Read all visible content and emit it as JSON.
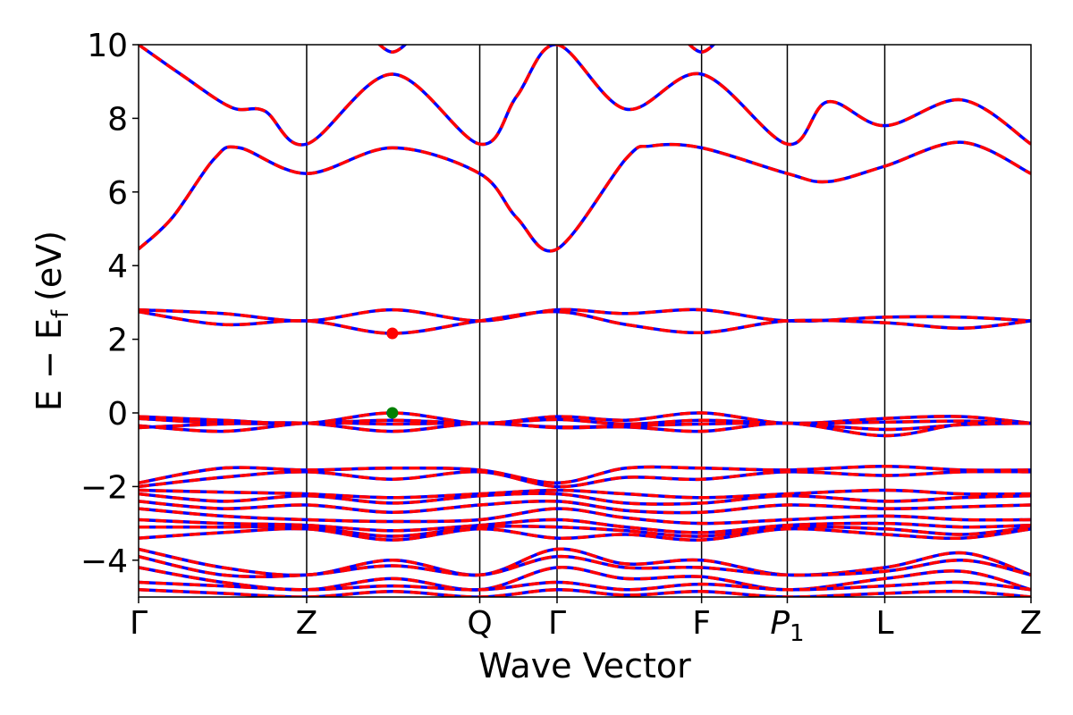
{
  "chart_data": {
    "type": "line",
    "title": "",
    "xlabel": "Wave Vector",
    "ylabel": "E − E",
    "ylabel_subscript": "f",
    "ylabel_unit": "(eV)",
    "ylim": [
      -5,
      10
    ],
    "yticks": [
      10,
      8,
      6,
      4,
      2,
      0,
      -2,
      -4
    ],
    "ytick_labels": [
      "10",
      "8",
      "6",
      "4",
      "2",
      "0",
      "−2",
      "−4"
    ],
    "kpoints": [
      {
        "label": "Γ",
        "sub": "",
        "italic": false,
        "x": 0.0
      },
      {
        "label": "Z",
        "sub": "",
        "italic": false,
        "x": 1.0
      },
      {
        "label": "Q",
        "sub": "",
        "italic": false,
        "x": 2.03
      },
      {
        "label": "Γ",
        "sub": "",
        "italic": false,
        "x": 2.49
      },
      {
        "label": "F",
        "sub": "",
        "italic": false,
        "x": 3.35
      },
      {
        "label": "P",
        "sub": "1",
        "italic": true,
        "x": 3.86
      },
      {
        "label": "L",
        "sub": "",
        "italic": false,
        "x": 4.44
      },
      {
        "label": "Z",
        "sub": "",
        "italic": false,
        "x": 5.31
      }
    ],
    "series_style": {
      "primary_color": "#0000ff",
      "overlay_color": "#ff0000",
      "overlay_dash": "dashed"
    },
    "markers": [
      {
        "name": "CBM",
        "x": 1.51,
        "y": 2.16,
        "color": "#ff0000"
      },
      {
        "name": "VBM",
        "x": 1.51,
        "y": 0.0,
        "color": "#008000"
      }
    ],
    "bands": [
      [
        [
          0,
          10.0
        ],
        [
          0.25,
          9.2
        ],
        [
          0.55,
          8.3
        ],
        [
          0.75,
          8.2
        ],
        [
          1.0,
          7.3
        ],
        [
          1.51,
          9.2
        ],
        [
          2.03,
          7.3
        ],
        [
          2.25,
          8.6
        ],
        [
          2.49,
          10.0
        ],
        [
          2.9,
          8.25
        ],
        [
          3.35,
          9.2
        ],
        [
          3.86,
          7.3
        ],
        [
          4.1,
          8.45
        ],
        [
          4.44,
          7.8
        ],
        [
          4.9,
          8.5
        ],
        [
          5.31,
          7.3
        ]
      ],
      [
        [
          0,
          4.45
        ],
        [
          0.2,
          5.3
        ],
        [
          0.45,
          6.9
        ],
        [
          0.6,
          7.2
        ],
        [
          1.0,
          6.5
        ],
        [
          1.51,
          7.2
        ],
        [
          2.03,
          6.5
        ],
        [
          2.25,
          5.3
        ],
        [
          2.49,
          4.45
        ],
        [
          2.9,
          6.9
        ],
        [
          3.05,
          7.25
        ],
        [
          3.35,
          7.2
        ],
        [
          3.86,
          6.5
        ],
        [
          4.1,
          6.28
        ],
        [
          4.44,
          6.7
        ],
        [
          4.9,
          7.35
        ],
        [
          5.31,
          6.5
        ]
      ],
      [
        [
          1.35,
          10.4
        ],
        [
          1.51,
          9.8
        ],
        [
          1.67,
          10.4
        ]
      ],
      [
        [
          3.2,
          10.4
        ],
        [
          3.35,
          9.8
        ],
        [
          3.5,
          10.4
        ]
      ],
      [
        [
          0,
          2.8
        ],
        [
          0.5,
          2.7
        ],
        [
          1.0,
          2.5
        ],
        [
          1.51,
          2.8
        ],
        [
          2.03,
          2.5
        ],
        [
          2.49,
          2.8
        ],
        [
          2.9,
          2.7
        ],
        [
          3.35,
          2.8
        ],
        [
          3.86,
          2.5
        ],
        [
          4.44,
          2.6
        ],
        [
          4.9,
          2.6
        ],
        [
          5.31,
          2.5
        ]
      ],
      [
        [
          0,
          2.75
        ],
        [
          0.5,
          2.4
        ],
        [
          1.0,
          2.5
        ],
        [
          1.51,
          2.16
        ],
        [
          2.03,
          2.5
        ],
        [
          2.49,
          2.75
        ],
        [
          2.9,
          2.4
        ],
        [
          3.35,
          2.18
        ],
        [
          3.86,
          2.5
        ],
        [
          4.44,
          2.45
        ],
        [
          4.9,
          2.3
        ],
        [
          5.31,
          2.5
        ]
      ],
      [
        [
          0,
          -0.1
        ],
        [
          0.5,
          -0.2
        ],
        [
          1.0,
          -0.28
        ],
        [
          1.51,
          0.0
        ],
        [
          2.03,
          -0.28
        ],
        [
          2.49,
          -0.1
        ],
        [
          2.9,
          -0.2
        ],
        [
          3.35,
          0.0
        ],
        [
          3.86,
          -0.28
        ],
        [
          4.44,
          -0.15
        ],
        [
          4.9,
          -0.1
        ],
        [
          5.31,
          -0.28
        ]
      ],
      [
        [
          0,
          -0.15
        ],
        [
          0.5,
          -0.28
        ],
        [
          1.0,
          -0.28
        ],
        [
          1.51,
          -0.2
        ],
        [
          2.03,
          -0.28
        ],
        [
          2.49,
          -0.18
        ],
        [
          2.9,
          -0.3
        ],
        [
          3.35,
          -0.2
        ],
        [
          3.86,
          -0.28
        ],
        [
          4.44,
          -0.25
        ],
        [
          4.9,
          -0.22
        ],
        [
          5.31,
          -0.28
        ]
      ],
      [
        [
          0,
          -0.35
        ],
        [
          0.5,
          -0.5
        ],
        [
          1.0,
          -0.28
        ],
        [
          1.51,
          -0.3
        ],
        [
          2.03,
          -0.28
        ],
        [
          2.49,
          -0.38
        ],
        [
          2.9,
          -0.35
        ],
        [
          3.35,
          -0.3
        ],
        [
          3.86,
          -0.28
        ],
        [
          4.44,
          -0.45
        ],
        [
          4.9,
          -0.32
        ],
        [
          5.31,
          -0.28
        ]
      ],
      [
        [
          0,
          -0.4
        ],
        [
          0.5,
          -0.3
        ],
        [
          1.0,
          -0.28
        ],
        [
          1.51,
          -0.5
        ],
        [
          2.03,
          -0.28
        ],
        [
          2.49,
          -0.4
        ],
        [
          2.9,
          -0.38
        ],
        [
          3.35,
          -0.5
        ],
        [
          3.86,
          -0.28
        ],
        [
          4.44,
          -0.62
        ],
        [
          4.9,
          -0.3
        ],
        [
          5.31,
          -0.28
        ]
      ],
      [
        [
          0,
          -1.9
        ],
        [
          0.5,
          -1.5
        ],
        [
          1.0,
          -1.55
        ],
        [
          1.51,
          -1.5
        ],
        [
          2.03,
          -1.55
        ],
        [
          2.49,
          -1.9
        ],
        [
          2.9,
          -1.5
        ],
        [
          3.35,
          -1.5
        ],
        [
          3.86,
          -1.55
        ],
        [
          4.44,
          -1.45
        ],
        [
          4.9,
          -1.55
        ],
        [
          5.31,
          -1.55
        ]
      ],
      [
        [
          0,
          -2.0
        ],
        [
          0.5,
          -1.75
        ],
        [
          1.0,
          -1.6
        ],
        [
          1.51,
          -1.8
        ],
        [
          2.03,
          -1.6
        ],
        [
          2.49,
          -2.0
        ],
        [
          2.9,
          -1.75
        ],
        [
          3.35,
          -1.8
        ],
        [
          3.86,
          -1.6
        ],
        [
          4.44,
          -1.7
        ],
        [
          4.9,
          -1.6
        ],
        [
          5.31,
          -1.6
        ]
      ],
      [
        [
          0,
          -2.1
        ],
        [
          0.5,
          -2.15
        ],
        [
          1.0,
          -2.2
        ],
        [
          1.51,
          -2.3
        ],
        [
          2.03,
          -2.2
        ],
        [
          2.49,
          -2.1
        ],
        [
          2.9,
          -2.2
        ],
        [
          3.35,
          -2.3
        ],
        [
          3.86,
          -2.2
        ],
        [
          4.44,
          -2.1
        ],
        [
          4.9,
          -2.2
        ],
        [
          5.31,
          -2.2
        ]
      ],
      [
        [
          0,
          -2.2
        ],
        [
          0.5,
          -2.4
        ],
        [
          1.0,
          -2.25
        ],
        [
          1.51,
          -2.45
        ],
        [
          2.03,
          -2.25
        ],
        [
          2.49,
          -2.2
        ],
        [
          2.9,
          -2.45
        ],
        [
          3.35,
          -2.45
        ],
        [
          3.86,
          -2.25
        ],
        [
          4.44,
          -2.4
        ],
        [
          4.9,
          -2.3
        ],
        [
          5.31,
          -2.25
        ]
      ],
      [
        [
          0,
          -2.4
        ],
        [
          0.5,
          -2.6
        ],
        [
          1.0,
          -2.5
        ],
        [
          1.51,
          -2.7
        ],
        [
          2.03,
          -2.5
        ],
        [
          2.49,
          -2.4
        ],
        [
          2.9,
          -2.65
        ],
        [
          3.35,
          -2.7
        ],
        [
          3.86,
          -2.5
        ],
        [
          4.44,
          -2.6
        ],
        [
          4.9,
          -2.55
        ],
        [
          5.31,
          -2.5
        ]
      ],
      [
        [
          0,
          -2.6
        ],
        [
          0.5,
          -2.8
        ],
        [
          1.0,
          -2.9
        ],
        [
          1.51,
          -2.95
        ],
        [
          2.03,
          -2.9
        ],
        [
          2.49,
          -2.6
        ],
        [
          2.9,
          -2.85
        ],
        [
          3.35,
          -3.0
        ],
        [
          3.86,
          -2.9
        ],
        [
          4.44,
          -2.8
        ],
        [
          4.9,
          -2.9
        ],
        [
          5.31,
          -2.9
        ]
      ],
      [
        [
          0,
          -2.9
        ],
        [
          0.5,
          -3.0
        ],
        [
          1.0,
          -3.05
        ],
        [
          1.51,
          -3.2
        ],
        [
          2.03,
          -3.05
        ],
        [
          2.49,
          -2.9
        ],
        [
          2.9,
          -3.1
        ],
        [
          3.35,
          -3.25
        ],
        [
          3.86,
          -3.05
        ],
        [
          4.44,
          -3.0
        ],
        [
          4.9,
          -3.1
        ],
        [
          5.31,
          -3.05
        ]
      ],
      [
        [
          0,
          -3.1
        ],
        [
          0.5,
          -3.1
        ],
        [
          1.0,
          -3.1
        ],
        [
          1.51,
          -3.35
        ],
        [
          2.03,
          -3.1
        ],
        [
          2.49,
          -3.1
        ],
        [
          2.9,
          -3.2
        ],
        [
          3.35,
          -3.35
        ],
        [
          3.86,
          -3.1
        ],
        [
          4.44,
          -3.15
        ],
        [
          4.9,
          -3.3
        ],
        [
          5.31,
          -3.1
        ]
      ],
      [
        [
          0,
          -3.4
        ],
        [
          0.5,
          -3.25
        ],
        [
          1.0,
          -3.15
        ],
        [
          1.51,
          -3.45
        ],
        [
          2.03,
          -3.15
        ],
        [
          2.49,
          -3.4
        ],
        [
          2.9,
          -3.3
        ],
        [
          3.35,
          -3.45
        ],
        [
          3.86,
          -3.15
        ],
        [
          4.44,
          -3.3
        ],
        [
          4.9,
          -3.4
        ],
        [
          5.31,
          -3.15
        ]
      ],
      [
        [
          0,
          -3.7
        ],
        [
          0.5,
          -4.2
        ],
        [
          1.0,
          -4.4
        ],
        [
          1.51,
          -4.0
        ],
        [
          2.03,
          -4.4
        ],
        [
          2.49,
          -3.7
        ],
        [
          2.9,
          -4.1
        ],
        [
          3.35,
          -4.0
        ],
        [
          3.86,
          -4.4
        ],
        [
          4.44,
          -4.2
        ],
        [
          4.9,
          -3.8
        ],
        [
          5.31,
          -4.4
        ]
      ],
      [
        [
          0,
          -3.9
        ],
        [
          0.5,
          -4.4
        ],
        [
          1.0,
          -4.4
        ],
        [
          1.51,
          -4.15
        ],
        [
          2.03,
          -4.4
        ],
        [
          2.49,
          -3.9
        ],
        [
          2.9,
          -4.2
        ],
        [
          3.35,
          -4.2
        ],
        [
          3.86,
          -4.4
        ],
        [
          4.44,
          -4.3
        ],
        [
          4.9,
          -4.0
        ],
        [
          5.31,
          -4.4
        ]
      ],
      [
        [
          0,
          -4.2
        ],
        [
          0.5,
          -4.6
        ],
        [
          1.0,
          -4.8
        ],
        [
          1.51,
          -4.5
        ],
        [
          2.03,
          -4.8
        ],
        [
          2.49,
          -4.2
        ],
        [
          2.9,
          -4.5
        ],
        [
          3.35,
          -4.45
        ],
        [
          3.86,
          -4.8
        ],
        [
          4.44,
          -4.5
        ],
        [
          4.9,
          -4.3
        ],
        [
          5.31,
          -4.8
        ]
      ],
      [
        [
          0,
          -4.6
        ],
        [
          0.5,
          -4.7
        ],
        [
          1.0,
          -4.8
        ],
        [
          1.51,
          -4.7
        ],
        [
          2.03,
          -4.8
        ],
        [
          2.49,
          -4.6
        ],
        [
          2.9,
          -4.8
        ],
        [
          3.35,
          -4.65
        ],
        [
          3.86,
          -4.8
        ],
        [
          4.44,
          -4.7
        ],
        [
          4.9,
          -4.6
        ],
        [
          5.31,
          -4.8
        ]
      ],
      [
        [
          0,
          -4.8
        ],
        [
          0.5,
          -4.9
        ],
        [
          1.0,
          -5.0
        ],
        [
          1.51,
          -4.85
        ],
        [
          2.03,
          -5.0
        ],
        [
          2.49,
          -4.8
        ],
        [
          2.9,
          -4.95
        ],
        [
          3.35,
          -4.85
        ],
        [
          3.86,
          -5.0
        ],
        [
          4.44,
          -4.9
        ],
        [
          4.9,
          -4.85
        ],
        [
          5.31,
          -5.0
        ]
      ]
    ]
  }
}
